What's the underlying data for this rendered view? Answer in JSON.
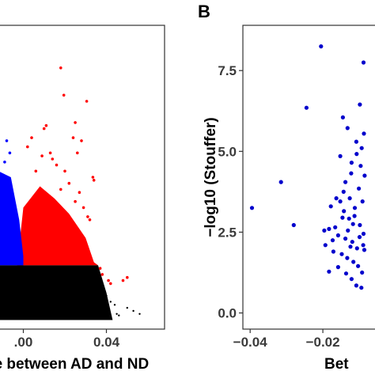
{
  "colors": {
    "red": "#ff0000",
    "blue": "#0000ff",
    "black": "#000000",
    "navy": "#0000cc",
    "panel_border": "#333333",
    "tick_text": "#3a3a3a"
  },
  "chart_data": [
    {
      "type": "scatter",
      "panel": "A",
      "xlabel": "ce between AD and ND",
      "ylabel": "",
      "xlim": [
        -0.012,
        0.068
      ],
      "ylim": [
        0,
        1
      ],
      "x_ticks": [
        0.0,
        0.04
      ],
      "x_tick_labels": [
        ".00",
        "0.04"
      ],
      "grid": false,
      "series": [
        {
          "color": "red",
          "points": [
            [
              0.018,
              0.86
            ],
            [
              0.0195,
              0.77
            ],
            [
              0.025,
              0.68
            ],
            [
              0.024,
              0.63
            ],
            [
              0.028,
              0.62
            ],
            [
              0.026,
              0.58
            ],
            [
              0.0305,
              0.75
            ],
            [
              0.0335,
              0.5
            ],
            [
              0.034,
              0.49
            ],
            [
              0.032,
              0.36
            ],
            [
              0.038,
              0.18
            ],
            [
              0.037,
              0.2
            ],
            [
              0.041,
              0.16
            ],
            [
              0.042,
              0.15
            ],
            [
              0.05,
              0.17
            ],
            [
              0.048,
              0.16
            ],
            [
              0.01,
              0.66
            ],
            [
              0.011,
              0.67
            ],
            [
              0.004,
              0.63
            ],
            [
              0.002,
              0.6
            ],
            [
              0.014,
              0.56
            ],
            [
              0.016,
              0.54
            ],
            [
              0.022,
              0.48
            ],
            [
              0.027,
              0.45
            ],
            [
              0.013,
              0.58
            ],
            [
              0.009,
              0.57
            ],
            [
              0.006,
              0.52
            ],
            [
              0.02,
              0.52
            ],
            [
              0.029,
              0.4
            ],
            [
              0.031,
              0.37
            ],
            [
              0.025,
              0.42
            ],
            [
              0.018,
              0.46
            ]
          ]
        },
        {
          "color": "blue",
          "points": [
            [
              -0.0065,
              0.58
            ],
            [
              -0.008,
              0.62
            ],
            [
              -0.009,
              0.55
            ],
            [
              -0.006,
              0.47
            ],
            [
              -0.007,
              0.44
            ],
            [
              -0.005,
              0.4
            ],
            [
              -0.004,
              0.38
            ],
            [
              -0.0035,
              0.35
            ],
            [
              -0.003,
              0.33
            ],
            [
              -0.002,
              0.31
            ],
            [
              -0.0085,
              0.36
            ],
            [
              -0.0055,
              0.34
            ]
          ]
        },
        {
          "color": "black",
          "points": [
            [
              0.045,
              0.05
            ],
            [
              0.046,
              0.045
            ],
            [
              0.05,
              0.07
            ],
            [
              0.053,
              0.06
            ],
            [
              0.056,
              0.05
            ],
            [
              0.042,
              0.09
            ],
            [
              0.04,
              0.11
            ],
            [
              0.044,
              0.08
            ]
          ]
        }
      ]
    },
    {
      "type": "scatter",
      "panel": "B",
      "xlabel": "Bet",
      "ylabel": "−log10 (Stouffer)",
      "xlim": [
        -0.042,
        -0.005
      ],
      "ylim": [
        -0.5,
        8.9
      ],
      "x_ticks": [
        -0.04,
        -0.02
      ],
      "x_tick_labels": [
        "−0.04",
        "−0.02"
      ],
      "y_ticks": [
        0.0,
        2.5,
        5.0,
        7.5
      ],
      "y_tick_labels": [
        "0.0",
        "2.5",
        "5.0",
        "7.5"
      ],
      "grid": false,
      "series": [
        {
          "color": "navy",
          "points": [
            [
              -0.0395,
              3.25
            ],
            [
              -0.0315,
              4.05
            ],
            [
              -0.028,
              2.72
            ],
            [
              -0.0245,
              6.35
            ],
            [
              -0.0205,
              8.25
            ],
            [
              -0.0088,
              7.75
            ],
            [
              -0.0132,
              5.72
            ],
            [
              -0.0108,
              5.3
            ],
            [
              -0.0145,
              6.05
            ],
            [
              -0.0098,
              6.45
            ],
            [
              -0.0152,
              4.85
            ],
            [
              -0.0122,
              4.32
            ],
            [
              -0.0096,
              4.55
            ],
            [
              -0.0085,
              4.25
            ],
            [
              -0.0178,
              3.3
            ],
            [
              -0.0163,
              3.55
            ],
            [
              -0.0142,
              3.15
            ],
            [
              -0.0128,
              2.92
            ],
            [
              -0.0113,
              3.0
            ],
            [
              -0.0098,
              2.72
            ],
            [
              -0.0183,
              2.6
            ],
            [
              -0.0158,
              2.4
            ],
            [
              -0.0138,
              2.3
            ],
            [
              -0.0119,
              2.2
            ],
            [
              -0.0106,
              2.0
            ],
            [
              -0.0089,
              2.1
            ],
            [
              -0.0193,
              2.1
            ],
            [
              -0.0171,
              1.9
            ],
            [
              -0.0148,
              1.82
            ],
            [
              -0.0133,
              1.7
            ],
            [
              -0.0116,
              1.58
            ],
            [
              -0.0103,
              1.45
            ],
            [
              -0.0183,
              1.28
            ],
            [
              -0.0158,
              1.42
            ],
            [
              -0.0136,
              1.22
            ],
            [
              -0.0121,
              1.05
            ],
            [
              -0.0108,
              0.85
            ],
            [
              -0.0094,
              0.78
            ],
            [
              -0.0166,
              2.65
            ],
            [
              -0.0152,
              3.45
            ],
            [
              -0.0143,
              3.75
            ],
            [
              -0.0126,
              3.55
            ],
            [
              -0.0112,
              3.25
            ],
            [
              -0.0101,
              3.85
            ],
            [
              -0.0091,
              3.45
            ],
            [
              -0.0088,
              2.45
            ],
            [
              -0.0086,
              1.95
            ],
            [
              -0.0092,
              1.25
            ],
            [
              -0.0173,
              2.25
            ],
            [
              -0.0146,
              2.95
            ],
            [
              -0.0131,
              2.55
            ],
            [
              -0.0124,
              2.05
            ],
            [
              -0.0117,
              2.75
            ],
            [
              -0.0099,
              2.35
            ],
            [
              -0.0138,
              4.05
            ],
            [
              -0.0121,
              4.65
            ],
            [
              -0.0107,
              4.92
            ],
            [
              -0.0093,
              5.1
            ],
            [
              -0.0087,
              5.55
            ],
            [
              -0.0196,
              2.55
            ]
          ]
        }
      ]
    }
  ],
  "panels": [
    {
      "letter": ""
    },
    {
      "letter": "B"
    }
  ]
}
